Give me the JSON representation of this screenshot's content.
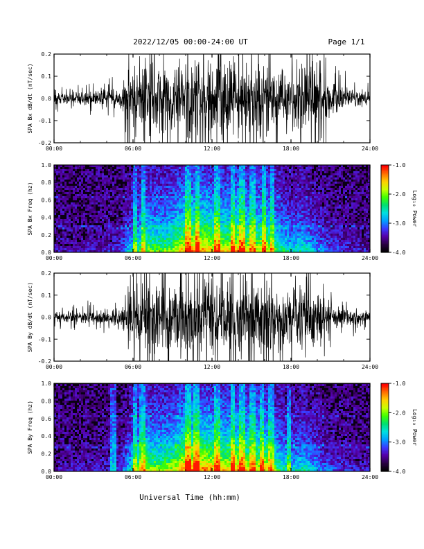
{
  "header": {
    "title": "2022/12/05  00:00-24:00 UT",
    "page": "Page 1/1"
  },
  "xlabel": "Universal Time (hh:mm)",
  "time_ticks": [
    "00:00",
    "06:00",
    "12:00",
    "18:00",
    "24:00"
  ],
  "colors": {
    "trace": "#000000",
    "colormap": [
      "#000000",
      "#2a0044",
      "#5500aa",
      "#3a3aff",
      "#00a0ff",
      "#00e0e0",
      "#00e070",
      "#40ff00",
      "#c8ff00",
      "#ffd000",
      "#ff7000",
      "#ff0000"
    ]
  },
  "chart_data": [
    {
      "type": "line",
      "ylabel": "SPA Bx dB/dt (nT/sec)",
      "x_range_hours": [
        0,
        24
      ],
      "ylim": [
        -0.2,
        0.2
      ],
      "yticks": [
        "-0.2",
        "-0.1",
        "0.0",
        "0.1",
        "0.2"
      ],
      "ytick_values": [
        -0.2,
        -0.1,
        0.0,
        0.1,
        0.2
      ],
      "series": [
        {
          "x_hours": [
            0,
            3,
            5,
            6,
            7,
            8,
            9,
            10,
            11,
            12,
            13,
            14,
            15,
            16,
            17,
            18,
            19,
            20,
            21,
            22,
            23,
            24
          ],
          "amplitude": [
            0.03,
            0.035,
            0.05,
            0.16,
            0.2,
            0.16,
            0.16,
            0.2,
            0.2,
            0.2,
            0.2,
            0.2,
            0.18,
            0.2,
            0.15,
            0.14,
            0.2,
            0.13,
            0.09,
            0.06,
            0.04,
            0.03
          ]
        }
      ]
    },
    {
      "type": "heatmap",
      "ylabel": "SPA Bx Freq (hz)",
      "x_range_hours": [
        0,
        24
      ],
      "ylim": [
        0.0,
        1.0
      ],
      "yticks": [
        "0.0",
        "0.2",
        "0.4",
        "0.6",
        "0.8",
        "1.0"
      ],
      "ytick_values": [
        0.0,
        0.2,
        0.4,
        0.6,
        0.8,
        1.0
      ],
      "colorbar": {
        "label": "Log₁₀ Power",
        "range": [
          -4.0,
          -1.0
        ],
        "ticks": [
          "-1.0",
          "-2.0",
          "-3.0",
          "-4.0"
        ],
        "tick_values": [
          -1.0,
          -2.0,
          -3.0,
          -4.0
        ]
      },
      "activity_hours": [
        0,
        3,
        5,
        6,
        7,
        8,
        9,
        10,
        11,
        12,
        13,
        14,
        15,
        16,
        17,
        18,
        19,
        20,
        21,
        22,
        23,
        24
      ],
      "activity_level": [
        0.08,
        0.1,
        0.15,
        0.45,
        0.65,
        0.6,
        0.65,
        0.85,
        0.9,
        0.8,
        0.75,
        0.85,
        0.7,
        0.8,
        0.55,
        0.4,
        0.45,
        0.3,
        0.2,
        0.15,
        0.12,
        0.1
      ],
      "bright_streaks_hours": [
        6.2,
        6.8,
        10.2,
        10.9,
        12.4,
        13.6,
        14.3,
        15.1,
        15.9,
        16.6
      ]
    },
    {
      "type": "line",
      "ylabel": "SPA By dB/dt (nT/sec)",
      "x_range_hours": [
        0,
        24
      ],
      "ylim": [
        -0.2,
        0.2
      ],
      "yticks": [
        "-0.2",
        "-0.1",
        "0.0",
        "0.1",
        "0.2"
      ],
      "ytick_values": [
        -0.2,
        -0.1,
        0.0,
        0.1,
        0.2
      ],
      "series": [
        {
          "x_hours": [
            0,
            3,
            5,
            6,
            7,
            8,
            9,
            10,
            11,
            12,
            13,
            14,
            15,
            16,
            17,
            18,
            19,
            20,
            21,
            22,
            23,
            24
          ],
          "amplitude": [
            0.03,
            0.035,
            0.05,
            0.15,
            0.2,
            0.17,
            0.18,
            0.2,
            0.2,
            0.2,
            0.2,
            0.2,
            0.18,
            0.2,
            0.14,
            0.13,
            0.2,
            0.11,
            0.07,
            0.05,
            0.04,
            0.03
          ]
        }
      ]
    },
    {
      "type": "heatmap",
      "ylabel": "SPA By Freq (hz)",
      "x_range_hours": [
        0,
        24
      ],
      "ylim": [
        0.0,
        1.0
      ],
      "yticks": [
        "0.0",
        "0.2",
        "0.4",
        "0.6",
        "0.8",
        "1.0"
      ],
      "ytick_values": [
        0.0,
        0.2,
        0.4,
        0.6,
        0.8,
        1.0
      ],
      "colorbar": {
        "label": "Log₁₀ Power",
        "range": [
          -4.0,
          -1.0
        ],
        "ticks": [
          "-1.0",
          "-2.0",
          "-3.0",
          "-4.0"
        ],
        "tick_values": [
          -1.0,
          -2.0,
          -3.0,
          -4.0
        ]
      },
      "activity_hours": [
        0,
        3,
        5,
        6,
        7,
        8,
        9,
        10,
        11,
        12,
        13,
        14,
        15,
        16,
        17,
        18,
        19,
        20,
        21,
        22,
        23,
        24
      ],
      "activity_level": [
        0.08,
        0.1,
        0.15,
        0.5,
        0.7,
        0.65,
        0.7,
        0.9,
        0.9,
        0.85,
        0.8,
        0.85,
        0.75,
        0.8,
        0.55,
        0.4,
        0.45,
        0.3,
        0.2,
        0.15,
        0.12,
        0.1
      ],
      "bright_streaks_hours": [
        4.5,
        6.2,
        6.7,
        10.2,
        10.8,
        12.4,
        13.6,
        14.3,
        15.1,
        15.8,
        16.5,
        17.8
      ]
    }
  ]
}
